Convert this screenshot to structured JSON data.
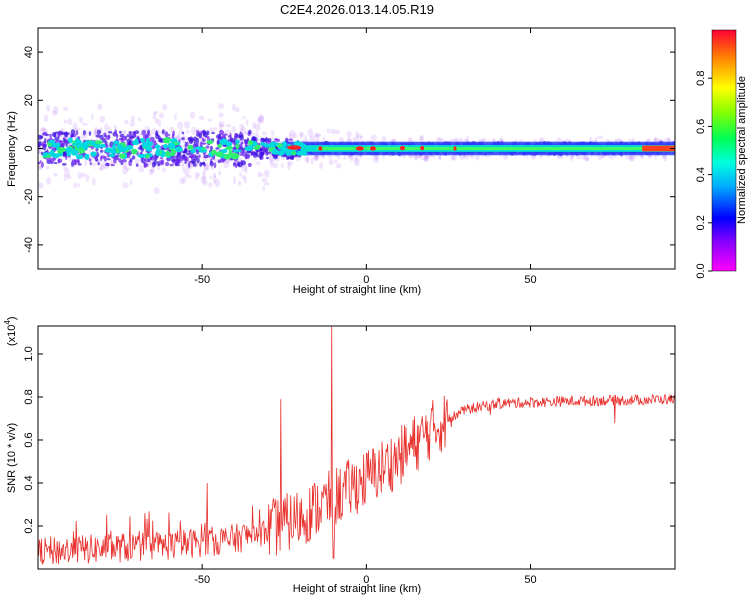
{
  "title": "C2E4.2026.013.14.05.R19",
  "chart_data": [
    {
      "type": "heatmap",
      "name": "spectrogram",
      "xlabel": "Height of straight line (km)",
      "ylabel": "Frequency (Hz)",
      "xlim": [
        -100,
        94
      ],
      "ylim": [
        -50,
        50
      ],
      "xticks": [
        -50,
        0,
        50
      ],
      "yticks": [
        -40,
        -20,
        0,
        20,
        40
      ],
      "colorbar": {
        "label": "Normalized spectral amplitude",
        "range": [
          0,
          1
        ],
        "ticks": [
          0.0,
          0.2,
          0.4,
          0.6,
          0.8
        ]
      }
    },
    {
      "type": "line",
      "name": "snr",
      "xlabel": "Height of straight line (km)",
      "ylabel": "SNR (10 * v/v)",
      "yexponent_label": "(x10",
      "yexponent_power": "4",
      "yexponent_close": ")",
      "xlim": [
        -100,
        94
      ],
      "ylim": [
        0,
        1.13
      ],
      "xticks": [
        -50,
        0,
        50
      ],
      "yticks": [
        0.2,
        0.4,
        0.6,
        0.8,
        1.0
      ],
      "color": "#e8322e",
      "trend": {
        "x": [
          -100,
          -60,
          -40,
          -30,
          -20,
          -10,
          0,
          10,
          20,
          30,
          40,
          60,
          94
        ],
        "y": [
          0.08,
          0.11,
          0.14,
          0.18,
          0.24,
          0.33,
          0.42,
          0.52,
          0.65,
          0.74,
          0.77,
          0.78,
          0.79
        ]
      },
      "spikes": [
        {
          "x": -10.5,
          "y": 1.13
        },
        {
          "x": -26,
          "y": 0.79
        },
        {
          "x": -48.5,
          "y": 0.4
        },
        {
          "x": -10,
          "y": 0.05
        }
      ]
    }
  ]
}
